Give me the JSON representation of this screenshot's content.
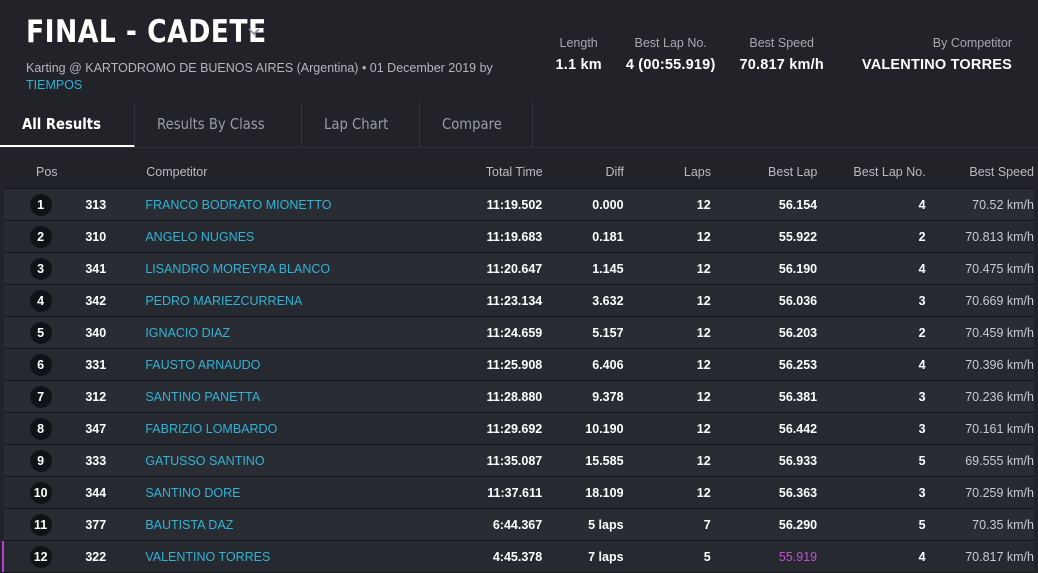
{
  "header": {
    "title": "FINAL - CADETE",
    "subtitle_prefix": "Karting @ KARTODROMO DE BUENOS AIRES (Argentina) • 01 December 2019 by",
    "subtitle_link": "TIEMPOS"
  },
  "stats": [
    {
      "label": "Length",
      "value": "1.1 km"
    },
    {
      "label": "Best Lap No.",
      "value": "4 (00:55.919)"
    },
    {
      "label": "Best Speed",
      "value": "70.817 km/h"
    },
    {
      "label": "By Competitor",
      "value": "VALENTINO TORRES"
    }
  ],
  "tabs": [
    {
      "label": "All Results",
      "active": true
    },
    {
      "label": "Results By Class",
      "active": false
    },
    {
      "label": "Lap Chart",
      "active": false
    },
    {
      "label": "Compare",
      "active": false
    }
  ],
  "columns": {
    "pos": "Pos",
    "competitor": "Competitor",
    "total_time": "Total Time",
    "diff": "Diff",
    "laps": "Laps",
    "best_lap": "Best Lap",
    "best_lap_no": "Best Lap No.",
    "best_speed": "Best Speed"
  },
  "rows": [
    {
      "pos": "1",
      "num": "313",
      "name": "FRANCO BODRATO MIONETTO",
      "time": "11:19.502",
      "diff": "0.000",
      "laps": "12",
      "best": "56.154",
      "blno": "4",
      "speed": "70.52 km/h"
    },
    {
      "pos": "2",
      "num": "310",
      "name": "ANGELO NUGNES",
      "time": "11:19.683",
      "diff": "0.181",
      "laps": "12",
      "best": "55.922",
      "blno": "2",
      "speed": "70.813 km/h"
    },
    {
      "pos": "3",
      "num": "341",
      "name": "LISANDRO MOREYRA BLANCO",
      "time": "11:20.647",
      "diff": "1.145",
      "laps": "12",
      "best": "56.190",
      "blno": "4",
      "speed": "70.475 km/h"
    },
    {
      "pos": "4",
      "num": "342",
      "name": "PEDRO MARIEZCURRENA",
      "time": "11:23.134",
      "diff": "3.632",
      "laps": "12",
      "best": "56.036",
      "blno": "3",
      "speed": "70.669 km/h"
    },
    {
      "pos": "5",
      "num": "340",
      "name": "IGNACIO DIAZ",
      "time": "11:24.659",
      "diff": "5.157",
      "laps": "12",
      "best": "56.203",
      "blno": "2",
      "speed": "70.459 km/h"
    },
    {
      "pos": "6",
      "num": "331",
      "name": "FAUSTO ARNAUDO",
      "time": "11:25.908",
      "diff": "6.406",
      "laps": "12",
      "best": "56.253",
      "blno": "4",
      "speed": "70.396 km/h"
    },
    {
      "pos": "7",
      "num": "312",
      "name": "SANTINO PANETTA",
      "time": "11:28.880",
      "diff": "9.378",
      "laps": "12",
      "best": "56.381",
      "blno": "3",
      "speed": "70.236 km/h"
    },
    {
      "pos": "8",
      "num": "347",
      "name": "FABRIZIO LOMBARDO",
      "time": "11:29.692",
      "diff": "10.190",
      "laps": "12",
      "best": "56.442",
      "blno": "3",
      "speed": "70.161 km/h"
    },
    {
      "pos": "9",
      "num": "333",
      "name": "GATUSSO SANTINO",
      "time": "11:35.087",
      "diff": "15.585",
      "laps": "12",
      "best": "56.933",
      "blno": "5",
      "speed": "69.555 km/h"
    },
    {
      "pos": "10",
      "num": "344",
      "name": "SANTINO DORE",
      "time": "11:37.611",
      "diff": "18.109",
      "laps": "12",
      "best": "56.363",
      "blno": "3",
      "speed": "70.259 km/h"
    },
    {
      "pos": "11",
      "num": "377",
      "name": "BAUTISTA DAZ",
      "time": "6:44.367",
      "diff": "5 laps",
      "laps": "7",
      "best": "56.290",
      "blno": "5",
      "speed": "70.35 km/h"
    },
    {
      "pos": "12",
      "num": "322",
      "name": "VALENTINO TORRES",
      "time": "4:45.378",
      "diff": "7 laps",
      "laps": "5",
      "best": "55.919",
      "blno": "4",
      "speed": "70.817 km/h",
      "best_overall": true
    }
  ],
  "colors": {
    "background": "#212329",
    "link": "#2fb4d6",
    "best_lap_highlight": "#c04fd6"
  }
}
